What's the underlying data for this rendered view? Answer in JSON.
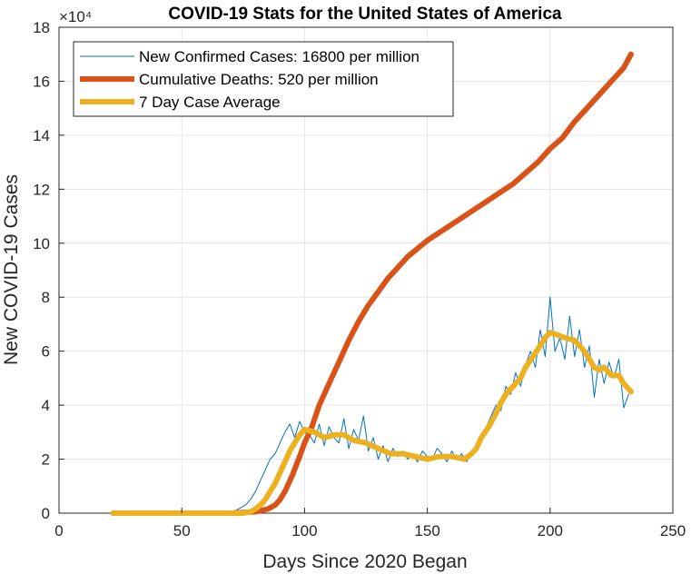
{
  "chart_data": {
    "type": "line",
    "title": "COVID-19 Stats for the United States of America",
    "xlabel": "Days Since 2020 Began",
    "ylabel": "New COVID-19 Cases",
    "xlim": [
      0,
      250
    ],
    "ylim": [
      0,
      180000
    ],
    "x_ticks": [
      0,
      50,
      100,
      150,
      200,
      250
    ],
    "y_tick_values": [
      0,
      20000,
      40000,
      60000,
      80000,
      100000,
      120000,
      140000,
      160000,
      180000
    ],
    "y_tick_labels": [
      "0",
      "2",
      "4",
      "6",
      "8",
      "10",
      "12",
      "14",
      "16",
      "18"
    ],
    "y_multiplier": "×10⁴",
    "grid": true,
    "legend_position": "top-left",
    "colors": {
      "cases": "#0072BD",
      "deaths": "#D95319",
      "average": "#EDB120"
    },
    "series": [
      {
        "name": "New Confirmed Cases: 16800 per million",
        "color": "#0072BD",
        "x": [
          22,
          40,
          50,
          60,
          65,
          70,
          72,
          74,
          76,
          78,
          80,
          82,
          84,
          86,
          88,
          90,
          92,
          94,
          96,
          98,
          100,
          102,
          104,
          106,
          108,
          110,
          112,
          114,
          116,
          118,
          120,
          122,
          124,
          126,
          128,
          130,
          132,
          134,
          136,
          138,
          140,
          142,
          144,
          146,
          148,
          150,
          152,
          154,
          156,
          158,
          160,
          162,
          164,
          166,
          168,
          170,
          172,
          174,
          176,
          178,
          180,
          182,
          184,
          186,
          188,
          190,
          192,
          194,
          196,
          198,
          200,
          202,
          204,
          206,
          208,
          210,
          212,
          214,
          216,
          218,
          220,
          222,
          224,
          226,
          228,
          230,
          232
        ],
        "y": [
          0,
          0,
          0,
          0,
          200,
          500,
          1000,
          2000,
          3000,
          5000,
          8000,
          12000,
          16000,
          20000,
          22000,
          26000,
          30000,
          33000,
          28000,
          34000,
          30000,
          29000,
          26000,
          33000,
          25000,
          32000,
          28000,
          26000,
          35000,
          24000,
          31000,
          27000,
          36000,
          23000,
          28000,
          20000,
          25000,
          19000,
          24000,
          21000,
          23000,
          20000,
          22000,
          19000,
          23000,
          21000,
          20000,
          24000,
          22000,
          19000,
          23000,
          20000,
          22000,
          19000,
          23000,
          25000,
          28000,
          32000,
          36000,
          40000,
          38000,
          47000,
          44000,
          52000,
          47000,
          55000,
          60000,
          54000,
          68000,
          58000,
          80000,
          60000,
          65000,
          57000,
          73000,
          58000,
          68000,
          54000,
          62000,
          43000,
          57000,
          48000,
          56000,
          50000,
          57000,
          39000,
          44000
        ]
      },
      {
        "name": "Cumulative Deaths: 520 per million",
        "color": "#D95319",
        "x": [
          22,
          50,
          70,
          80,
          85,
          88,
          90,
          92,
          95,
          98,
          100,
          103,
          106,
          110,
          114,
          118,
          122,
          126,
          130,
          134,
          138,
          142,
          146,
          150,
          155,
          160,
          165,
          170,
          175,
          180,
          185,
          190,
          195,
          200,
          205,
          210,
          215,
          220,
          225,
          230,
          233
        ],
        "y": [
          0,
          0,
          0,
          500,
          1500,
          3000,
          5000,
          8000,
          14000,
          21000,
          26000,
          32000,
          40000,
          48000,
          56000,
          64000,
          71000,
          77000,
          82000,
          87000,
          91000,
          95000,
          98000,
          101000,
          104000,
          107000,
          110000,
          113000,
          116000,
          119000,
          122000,
          126000,
          130000,
          135000,
          139000,
          145000,
          150000,
          155000,
          160000,
          165000,
          170000
        ]
      },
      {
        "name": "7 Day Case Average",
        "color": "#EDB120",
        "x": [
          22,
          50,
          70,
          75,
          78,
          80,
          82,
          84,
          86,
          88,
          90,
          92,
          94,
          96,
          98,
          100,
          104,
          108,
          112,
          116,
          120,
          125,
          130,
          135,
          140,
          145,
          150,
          155,
          160,
          165,
          168,
          170,
          172,
          175,
          178,
          180,
          182,
          185,
          188,
          190,
          193,
          196,
          198,
          200,
          203,
          206,
          210,
          214,
          216,
          218,
          220,
          222,
          225,
          228,
          230,
          233
        ],
        "y": [
          0,
          0,
          0,
          0,
          500,
          1500,
          3000,
          5000,
          8000,
          11000,
          15000,
          19000,
          23000,
          26000,
          29000,
          31000,
          30000,
          28000,
          29000,
          29000,
          27000,
          26000,
          24000,
          22000,
          22000,
          21000,
          20000,
          21000,
          21000,
          20000,
          22000,
          24000,
          28000,
          32000,
          37000,
          41000,
          44000,
          47000,
          50000,
          54000,
          58000,
          62000,
          65000,
          67000,
          66000,
          65000,
          64000,
          60000,
          57000,
          54000,
          53000,
          54000,
          51000,
          51000,
          48000,
          45000
        ]
      }
    ]
  }
}
